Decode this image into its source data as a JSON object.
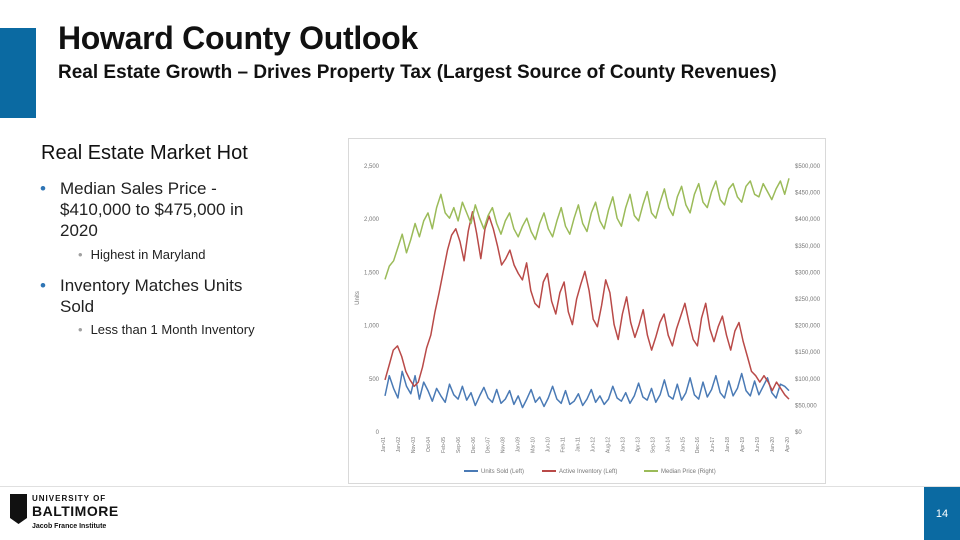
{
  "header": {
    "title": "Howard County Outlook",
    "subtitle": "Real Estate Growth – Drives Property Tax (Largest Source of County Revenues)",
    "accent_color": "#0b6aa2"
  },
  "content": {
    "heading": "Real Estate Market Hot",
    "bullets": [
      {
        "text": "Median Sales Price - $410,000 to $475,000 in 2020",
        "sub": "Highest in Maryland"
      },
      {
        "text": "Inventory Matches Units Sold",
        "sub": "Less than 1 Month Inventory"
      }
    ]
  },
  "footer": {
    "logo_line1": "UNIVERSITY OF",
    "logo_line2": "BALTIMORE",
    "logo_line3": "Jacob France Institute",
    "page_number": "14"
  },
  "chart_data": {
    "type": "line",
    "ylabel": "Units",
    "left_axis": {
      "range": [
        0,
        2500
      ],
      "ticks": [
        "0",
        "500",
        "1,000",
        "1,500",
        "2,000",
        "2,500"
      ]
    },
    "right_axis": {
      "range": [
        0,
        500000
      ],
      "ticks": [
        "$0",
        "$50,000",
        "$100,000",
        "$150,000",
        "$200,000",
        "$250,000",
        "$300,000",
        "$350,000",
        "$400,000",
        "$450,000",
        "$500,000"
      ]
    },
    "x_ticks": [
      "Jan-01",
      "Jan-02",
      "Nov-03",
      "Oct-04",
      "Feb-05",
      "Sep-06",
      "Dec-06",
      "Dec-07",
      "Nov-08",
      "Jan-09",
      "Mar-10",
      "Jun-10",
      "Feb-11",
      "Jan-11",
      "Jun-12",
      "Aug-12",
      "Jan-13",
      "Apr-13",
      "Sep-13",
      "Jan-14",
      "Jan-15",
      "Dec-16",
      "Jun-17",
      "Jan-18",
      "Apr-19",
      "Jun-19",
      "Jan-20",
      "Apr-20"
    ],
    "colors": {
      "units": "#4a7ab5",
      "inventory": "#b94a48",
      "median": "#9bbb59"
    },
    "series": [
      {
        "name": "Units Sold (Left)",
        "axis": "left",
        "values": [
          330,
          520,
          400,
          310,
          560,
          420,
          350,
          520,
          300,
          460,
          380,
          280,
          400,
          330,
          270,
          440,
          340,
          300,
          420,
          290,
          360,
          240,
          330,
          410,
          310,
          270,
          390,
          260,
          300,
          380,
          250,
          330,
          220,
          300,
          390,
          270,
          320,
          230,
          310,
          420,
          300,
          260,
          380,
          250,
          280,
          350,
          240,
          300,
          390,
          270,
          330,
          250,
          300,
          420,
          310,
          280,
          360,
          260,
          330,
          450,
          320,
          290,
          400,
          270,
          340,
          480,
          330,
          300,
          440,
          290,
          360,
          500,
          340,
          300,
          460,
          320,
          390,
          520,
          360,
          310,
          470,
          330,
          400,
          540,
          380,
          330,
          470,
          340,
          420,
          500,
          360,
          310,
          440,
          420,
          380
        ]
      },
      {
        "name": "Active Inventory (Left)",
        "axis": "left",
        "values": [
          480,
          620,
          760,
          800,
          700,
          560,
          480,
          420,
          460,
          600,
          780,
          900,
          1120,
          1300,
          1500,
          1700,
          1840,
          1900,
          1780,
          1600,
          1880,
          2060,
          1860,
          1620,
          1900,
          2020,
          1900,
          1740,
          1560,
          1620,
          1700,
          1560,
          1480,
          1420,
          1580,
          1320,
          1200,
          1160,
          1400,
          1480,
          1220,
          1100,
          1300,
          1400,
          1120,
          1000,
          1240,
          1380,
          1500,
          1320,
          1050,
          980,
          1180,
          1420,
          1300,
          1000,
          860,
          1100,
          1260,
          1020,
          880,
          1000,
          1140,
          900,
          760,
          880,
          1020,
          1100,
          900,
          800,
          960,
          1080,
          1200,
          1020,
          860,
          800,
          1060,
          1200,
          960,
          840,
          980,
          1080,
          900,
          760,
          940,
          1020,
          840,
          700,
          560,
          520,
          460,
          520,
          460,
          380,
          460,
          400,
          340,
          300
        ]
      },
      {
        "name": "Median Price (Right)",
        "axis": "right",
        "values": [
          285000,
          310000,
          320000,
          345000,
          370000,
          335000,
          360000,
          390000,
          365000,
          395000,
          410000,
          380000,
          420000,
          445000,
          410000,
          400000,
          420000,
          395000,
          430000,
          410000,
          390000,
          425000,
          400000,
          380000,
          405000,
          420000,
          390000,
          370000,
          395000,
          410000,
          380000,
          365000,
          385000,
          400000,
          375000,
          360000,
          390000,
          410000,
          380000,
          365000,
          395000,
          420000,
          385000,
          370000,
          400000,
          425000,
          390000,
          375000,
          410000,
          430000,
          395000,
          380000,
          415000,
          440000,
          400000,
          385000,
          420000,
          445000,
          405000,
          395000,
          425000,
          450000,
          410000,
          400000,
          430000,
          455000,
          420000,
          405000,
          440000,
          460000,
          425000,
          410000,
          445000,
          465000,
          430000,
          420000,
          450000,
          470000,
          435000,
          425000,
          455000,
          465000,
          440000,
          430000,
          460000,
          470000,
          445000,
          440000,
          465000,
          450000,
          435000,
          455000,
          470000,
          445000,
          475000
        ]
      }
    ],
    "legend": [
      "Units Sold (Left)",
      "Active Inventory (Left)",
      "Median Price (Right)"
    ]
  }
}
